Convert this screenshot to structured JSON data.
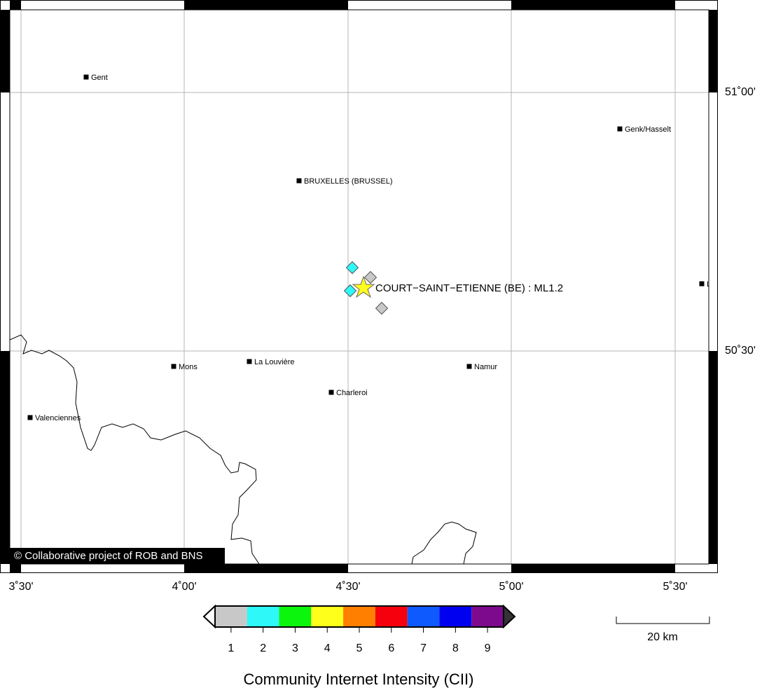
{
  "map": {
    "lon_labels": [
      "3˚30'",
      "4˚00'",
      "4˚30'",
      "5˚00'",
      "5˚30'"
    ],
    "lat_labels": [
      "51˚00'",
      "50˚30'"
    ],
    "cities": [
      "Gent",
      "Genk/Hasselt",
      "BRUXELLES (BRUSSEL)",
      "Mons",
      "La Louvière",
      "Namur",
      "Charleroi",
      "Valenciennes",
      "L"
    ],
    "event_label": "COURT−SAINT−ETIENNE (BE) : ML1.2",
    "copyright": "© Collaborative project of ROB and BNS"
  },
  "legend": {
    "title": "Community Internet Intensity (CII)",
    "levels": [
      1,
      2,
      3,
      4,
      5,
      6,
      7,
      8,
      9
    ],
    "colors": [
      "#c8c8c8",
      "#2ef8f8",
      "#0cf50c",
      "#ffff1c",
      "#ff7f00",
      "#f5000c",
      "#0f5aff",
      "#0000f0",
      "#7d0a8c"
    ]
  },
  "scale_bar": "20 km"
}
